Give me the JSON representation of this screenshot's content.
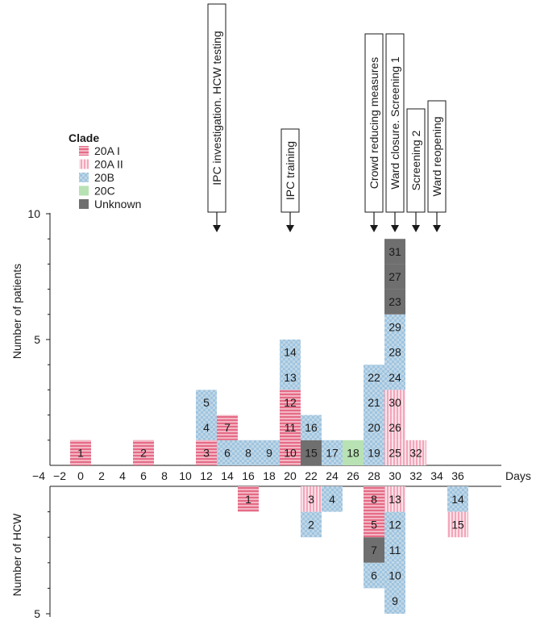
{
  "chart_data": {
    "type": "bar",
    "title": "",
    "xlabel": "Days",
    "ylabel_top": "Number of patients",
    "ylabel_bottom": "Number of HCW",
    "x_ticks": [
      -4,
      -2,
      0,
      2,
      4,
      6,
      8,
      10,
      12,
      14,
      16,
      18,
      20,
      22,
      24,
      26,
      28,
      30,
      32,
      34,
      36
    ],
    "ylim_top": [
      0,
      10
    ],
    "ylim_bottom": [
      0,
      5
    ],
    "y_ticks_top": [
      5,
      10
    ],
    "y_ticks_bottom": [
      5
    ],
    "legend": {
      "title": "Clade",
      "entries": [
        {
          "label": "20A I",
          "key": "A1",
          "color": "#e8738c"
        },
        {
          "label": "20A II",
          "key": "A2",
          "color": "#f6b4c4"
        },
        {
          "label": "20B",
          "key": "B",
          "color": "#8fb3d4"
        },
        {
          "label": "20C",
          "key": "C",
          "color": "#b5e0b0"
        },
        {
          "label": "Unknown",
          "key": "U",
          "color": "#777777"
        }
      ]
    },
    "annotations": [
      {
        "x": 13,
        "text": "IPC investigation. HCW testing"
      },
      {
        "x": 20,
        "text": "IPC training"
      },
      {
        "x": 28,
        "text": "Crowd reducing measures"
      },
      {
        "x": 30,
        "text": "Ward closure. Screening 1"
      },
      {
        "x": 32,
        "text": "Screening 2"
      },
      {
        "x": 34,
        "text": "Ward reopening"
      }
    ],
    "patients": [
      {
        "x": 0,
        "stack": [
          {
            "id": "1",
            "clade": "A1"
          }
        ]
      },
      {
        "x": 6,
        "stack": [
          {
            "id": "2",
            "clade": "A1"
          }
        ]
      },
      {
        "x": 12,
        "stack": [
          {
            "id": "3",
            "clade": "A1"
          },
          {
            "id": "4",
            "clade": "B"
          },
          {
            "id": "5",
            "clade": "B"
          }
        ]
      },
      {
        "x": 14,
        "stack": [
          {
            "id": "6",
            "clade": "B"
          },
          {
            "id": "7",
            "clade": "A1"
          }
        ]
      },
      {
        "x": 16,
        "stack": [
          {
            "id": "8",
            "clade": "B"
          }
        ]
      },
      {
        "x": 18,
        "stack": [
          {
            "id": "9",
            "clade": "B"
          }
        ]
      },
      {
        "x": 20,
        "stack": [
          {
            "id": "10",
            "clade": "A1"
          },
          {
            "id": "11",
            "clade": "A1"
          },
          {
            "id": "12",
            "clade": "A1"
          },
          {
            "id": "13",
            "clade": "B"
          },
          {
            "id": "14",
            "clade": "B"
          }
        ]
      },
      {
        "x": 22,
        "stack": [
          {
            "id": "15",
            "clade": "U"
          },
          {
            "id": "16",
            "clade": "B"
          }
        ]
      },
      {
        "x": 24,
        "stack": [
          {
            "id": "17",
            "clade": "B"
          }
        ]
      },
      {
        "x": 26,
        "stack": [
          {
            "id": "18",
            "clade": "C"
          }
        ]
      },
      {
        "x": 28,
        "stack": [
          {
            "id": "19",
            "clade": "B"
          },
          {
            "id": "20",
            "clade": "B"
          },
          {
            "id": "21",
            "clade": "B"
          },
          {
            "id": "22",
            "clade": "B"
          }
        ]
      },
      {
        "x": 30,
        "stack": [
          {
            "id": "25",
            "clade": "A2"
          },
          {
            "id": "26",
            "clade": "A2"
          },
          {
            "id": "30",
            "clade": "A2"
          },
          {
            "id": "24",
            "clade": "B"
          },
          {
            "id": "28",
            "clade": "B"
          },
          {
            "id": "29",
            "clade": "B"
          },
          {
            "id": "23",
            "clade": "U"
          },
          {
            "id": "27",
            "clade": "U"
          },
          {
            "id": "31",
            "clade": "U"
          }
        ]
      },
      {
        "x": 32,
        "stack": [
          {
            "id": "32",
            "clade": "A2"
          }
        ]
      }
    ],
    "hcw": [
      {
        "x": 16,
        "stack": [
          {
            "id": "1",
            "clade": "A1"
          }
        ]
      },
      {
        "x": 22,
        "stack": [
          {
            "id": "3",
            "clade": "A2"
          },
          {
            "id": "2",
            "clade": "B"
          }
        ]
      },
      {
        "x": 24,
        "stack": [
          {
            "id": "4",
            "clade": "B"
          }
        ]
      },
      {
        "x": 28,
        "stack": [
          {
            "id": "8",
            "clade": "A1"
          },
          {
            "id": "5",
            "clade": "A1"
          },
          {
            "id": "7",
            "clade": "U"
          },
          {
            "id": "6",
            "clade": "B"
          }
        ]
      },
      {
        "x": 30,
        "stack": [
          {
            "id": "13",
            "clade": "A2"
          },
          {
            "id": "12",
            "clade": "B"
          },
          {
            "id": "11",
            "clade": "B"
          },
          {
            "id": "10",
            "clade": "B"
          },
          {
            "id": "9",
            "clade": "B"
          }
        ]
      },
      {
        "x": 36,
        "stack": [
          {
            "id": "14",
            "clade": "B"
          },
          {
            "id": "15",
            "clade": "A2"
          }
        ]
      }
    ]
  }
}
